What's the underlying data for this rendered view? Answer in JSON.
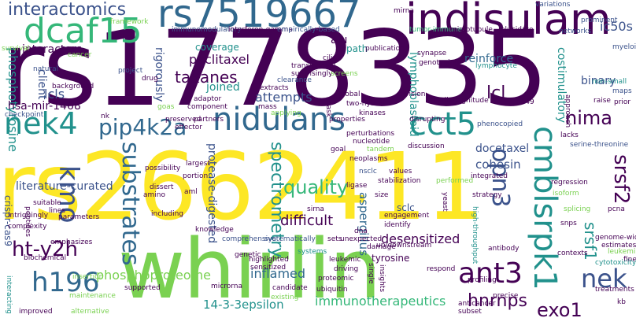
{
  "colors": {
    "purple": "#440154",
    "indigo": "#3b528b",
    "blue": "#31688e",
    "teal": "#21918c",
    "green": "#35b779",
    "lime": "#7ad151",
    "yellow": "#fde725"
  },
  "words": [
    "rs1778335",
    "rs2662411",
    "whirlin",
    "indisulam",
    "rs7519667",
    "nidulans",
    "dcaf15",
    "interactomics",
    "nek4",
    "kmo",
    "pip4k2a",
    "cct5",
    "ant3",
    "cmblsrpk1",
    "h196",
    "nek",
    "exo1",
    "opn3",
    "nima",
    "srsf2",
    "srsf1",
    "lcl",
    "substrates",
    "spectrometry",
    "ht-y2h",
    "hnrnps",
    "quality",
    "taxanes",
    "paclitaxel",
    "lcls",
    "phosphotyrosine",
    "phosphoproteome",
    "immunotherapeutics",
    "14-3-3epsilon",
    "inflamed",
    "desensitized",
    "difficult",
    "aspergillus",
    "protease-digested",
    "literature-curated",
    "hsa-mir-1468",
    "cohesin",
    "docetaxel",
    "reinforce",
    "binary",
    "ic50s",
    "costimulatory",
    "lymphoblastoid",
    "attempts",
    "coverage",
    "interactors",
    "rigorously",
    "joined",
    "client",
    "alu",
    "path",
    "crispr-cas9",
    "sclc",
    "tyrosine",
    "immunomodulatory",
    "interferon-gamma",
    "empirically-based",
    "tumor-immune",
    "microtubule",
    "elucidate",
    "variations",
    "prominent",
    "networks",
    "myeloid",
    "framework",
    "mirna",
    "survival",
    "cancer",
    "natural",
    "background",
    "translational",
    "surprisingly",
    "genotyping",
    "synapse",
    "lymphocyte",
    "publication",
    "extracts",
    "clearance",
    "screens",
    "cilia",
    "project",
    "drug",
    "non-small",
    "maps",
    "raise",
    "a549",
    "magnitude",
    "division",
    "global",
    "two-hybrid",
    "adaptor",
    "component",
    "mass",
    "goas",
    "nk",
    "checkpoint",
    "applying",
    "partners",
    "task",
    "properties",
    "kinases",
    "perturbations",
    "nucleotide",
    "disrupting",
    "phenocopied",
    "approach",
    "prior",
    "preserved",
    "effector",
    "goal",
    "tandem",
    "discussion",
    "lacks",
    "serine-threonine",
    "neoplasms",
    "possibility",
    "largest",
    "portion",
    "nsclc",
    "values",
    "integrated",
    "strategy",
    "regression",
    "isoform",
    "dissert",
    "amino",
    "aml",
    "performed",
    "yeast",
    "ligase",
    "size",
    "splicing",
    "pcna",
    "suitable",
    "lines",
    "sirna",
    "snps",
    "peptides",
    "including",
    "parameters",
    "engagement",
    "identify",
    "high-throughput",
    "genome-wide",
    "estimates",
    "antibody",
    "contexts",
    "knowledge",
    "comprehensive",
    "systematically",
    "respond",
    "systems",
    "intriguingly",
    "complexity",
    "emphasizes",
    "sets",
    "unexpected",
    "damage",
    "up/downstream",
    "leukemia",
    "fine",
    "leukemic",
    "biochemical",
    "genetic",
    "highlighted",
    "sensitized",
    "driving",
    "single",
    "profiling",
    "treatments",
    "interacting",
    "insertion",
    "candidate",
    "proteomic",
    "insights",
    "ubiquitin",
    "microrna",
    "supported",
    "existing",
    "precise",
    "anticancer",
    "subset",
    "improved",
    "alternative",
    "maintenance",
    "kb",
    "dna",
    "leading",
    "stabilization",
    "cytotoxicity"
  ]
}
